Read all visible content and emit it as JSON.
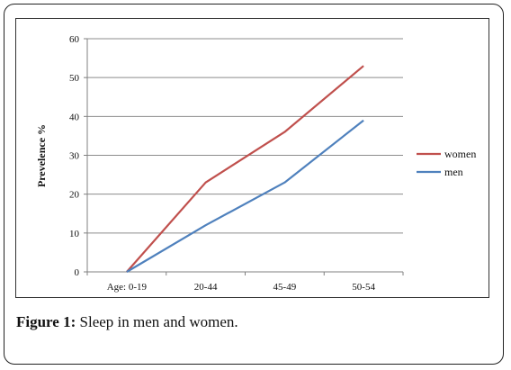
{
  "chart_data": {
    "type": "line",
    "categories": [
      "Age: 0-19",
      "20-44",
      "45-49",
      "50-54"
    ],
    "series": [
      {
        "name": "women",
        "color": "#c0504d",
        "values": [
          0,
          23,
          36,
          53
        ]
      },
      {
        "name": "men",
        "color": "#4f81bd",
        "values": [
          0,
          12,
          23,
          39
        ]
      }
    ],
    "ylabel": "Prevelence %",
    "ylim": [
      0,
      60
    ],
    "yticks": [
      "0",
      "10",
      "20",
      "30",
      "40",
      "50",
      "60"
    ],
    "grid": true,
    "legend_position": "right"
  },
  "caption": {
    "label": "Figure 1:",
    "text": " Sleep in men and women."
  }
}
